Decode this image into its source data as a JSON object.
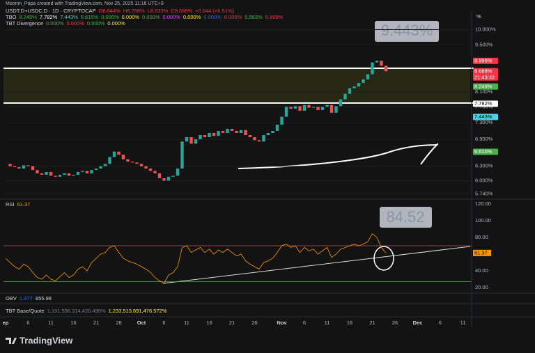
{
  "header": {
    "credit": "Moonin_Papa created with TradingView.com, Nov 25, 2025 11:16 UTC+9"
  },
  "legend": [
    [
      {
        "text": "USDT.D+USDC.D · 1D · CRYPTOCAP",
        "color": "#d1d4dc"
      },
      {
        "text": "O8.644%",
        "color": "#f23645"
      },
      {
        "text": "H8.708%",
        "color": "#f23645"
      },
      {
        "text": "L8.633%",
        "color": "#f23645"
      },
      {
        "text": "C8.688%",
        "color": "#f23645"
      },
      {
        "text": "+0.044 (+0.51%)",
        "color": "#f23645"
      }
    ],
    [
      {
        "text": "TBO",
        "color": "#d1d4dc"
      },
      {
        "text": "8.249%",
        "color": "#4caf50"
      },
      {
        "text": "7.782%",
        "color": "#ffffff"
      },
      {
        "text": "7.443%",
        "color": "#4dd0e1"
      },
      {
        "text": "6.615%",
        "color": "#4caf50"
      },
      {
        "text": "0.000%",
        "color": "#4caf50"
      },
      {
        "text": "0.000%",
        "color": "#ffeb3b"
      },
      {
        "text": "0.000%",
        "color": "#4caf50"
      },
      {
        "text": "0.000%",
        "color": "#e040fb"
      },
      {
        "text": "0.000%",
        "color": "#ffeb3b"
      },
      {
        "text": "0.000%",
        "color": "#2962ff"
      },
      {
        "text": "0.000%",
        "color": "#f23645"
      },
      {
        "text": "5.583%",
        "color": "#4caf50"
      },
      {
        "text": "8.999%",
        "color": "#f23645"
      }
    ],
    [
      {
        "text": "TBT Divergence",
        "color": "#d1d4dc"
      },
      {
        "text": "0.000%",
        "color": "#4caf50"
      },
      {
        "text": "0.000%",
        "color": "#f23645"
      },
      {
        "text": "0.000%",
        "color": "#4caf50"
      },
      {
        "text": "0.000%",
        "color": "#ffeb3b"
      }
    ]
  ],
  "chart_data": {
    "type": "candlestick",
    "log_scale": true,
    "axis_unit": "%",
    "up_color": "#26a69a",
    "down_color": "#ef5350",
    "close": [
      6.35,
      6.3,
      6.28,
      6.25,
      6.32,
      6.3,
      6.22,
      6.15,
      6.12,
      6.18,
      6.1,
      6.08,
      6.12,
      6.15,
      6.1,
      6.12,
      6.18,
      6.2,
      6.15,
      6.22,
      6.25,
      6.3,
      6.35,
      6.5,
      6.62,
      6.55,
      6.45,
      6.4,
      6.38,
      6.35,
      6.3,
      6.25,
      6.2,
      6.15,
      6.05,
      6.0,
      6.08,
      6.1,
      6.25,
      6.85,
      6.95,
      6.8,
      6.9,
      7.0,
      6.95,
      7.05,
      6.98,
      7.1,
      7.05,
      7.15,
      7.1,
      7.05,
      7.12,
      7.0,
      6.95,
      6.88,
      6.85,
      7.0,
      7.05,
      7.1,
      7.25,
      7.45,
      7.7,
      7.65,
      7.72,
      7.6,
      7.75,
      7.68,
      7.7,
      7.62,
      7.7,
      7.75,
      7.55,
      7.72,
      7.9,
      8.05,
      8.2,
      8.25,
      8.35,
      8.45,
      8.6,
      8.95,
      9.0,
      8.85,
      8.688
    ],
    "ylim": [
      5.65,
      10.3
    ],
    "yticks": [
      {
        "value": 10,
        "label": "10.000%"
      },
      {
        "value": 9.5,
        "label": "9.500%"
      },
      {
        "value": 8.1,
        "label": "8.100%"
      },
      {
        "value": 7.7,
        "label": "7.700%"
      },
      {
        "value": 7.3,
        "label": "7.300%"
      },
      {
        "value": 6.9,
        "label": "6.900%"
      },
      {
        "value": 6.3,
        "label": "6.300%"
      },
      {
        "value": 6,
        "label": "6.000%"
      },
      {
        "value": 5.74,
        "label": "5.740%"
      }
    ],
    "price_labels": [
      {
        "value": 8.999,
        "label": "8.999%",
        "color": "#f23645"
      },
      {
        "value": 8.688,
        "label": "8.688%",
        "color": "#f23645",
        "time": "21:43:32"
      },
      {
        "value": 8.249,
        "label": "8.249%",
        "color": "#4caf50"
      },
      {
        "value": 7.782,
        "label": "7.782%",
        "color": "#ffffff"
      },
      {
        "value": 7.443,
        "label": "7.443%",
        "color": "#4dd0e1"
      },
      {
        "value": 6.615,
        "label": "6.615%",
        "color": "#4caf50"
      }
    ],
    "annotation": "9.443%",
    "xticks": [
      "ep",
      "6",
      "11",
      "16",
      "21",
      "26",
      "Oct",
      "6",
      "11",
      "16",
      "21",
      "26",
      "Nov",
      "6",
      "11",
      "16",
      "21",
      "26",
      "Dec",
      "6",
      "11"
    ]
  },
  "rsi": {
    "name": "RSI",
    "value_label": "61.37",
    "color": "#ff9800",
    "values": [
      55,
      50,
      45,
      42,
      48,
      45,
      38,
      32,
      30,
      35,
      30,
      28,
      33,
      38,
      32,
      35,
      42,
      45,
      40,
      50,
      55,
      60,
      62,
      68,
      70,
      62,
      55,
      52,
      50,
      48,
      45,
      42,
      38,
      32,
      28,
      25,
      35,
      38,
      45,
      68,
      70,
      62,
      65,
      68,
      62,
      66,
      60,
      65,
      62,
      66,
      62,
      58,
      60,
      52,
      48,
      45,
      42,
      50,
      52,
      55,
      62,
      70,
      72,
      68,
      70,
      62,
      68,
      64,
      66,
      60,
      64,
      68,
      56,
      60,
      66,
      68,
      70,
      72,
      70,
      72,
      75,
      84.52,
      80,
      68,
      61.37
    ],
    "ylim": [
      15,
      125
    ],
    "yticks": [
      {
        "value": 120,
        "label": "120.00"
      },
      {
        "value": 100,
        "label": "100.00"
      },
      {
        "value": 80,
        "label": "80.00"
      },
      {
        "value": 40,
        "label": "40.00"
      },
      {
        "value": 20,
        "label": "20.00"
      }
    ],
    "levels": [
      {
        "value": 70,
        "color": "#f23645"
      },
      {
        "value": 27,
        "color": "#4caf50"
      }
    ],
    "annotation": "84.52"
  },
  "obv": {
    "name": "OBV",
    "v1": "1.47T",
    "v2": "855.98"
  },
  "base_quote": {
    "name": "TBT Base/Quote",
    "v1": "1,191,596,314,420.490%",
    "v2": "1,233,513,691,476.572%"
  },
  "footer": {
    "logo": "TradingView"
  }
}
